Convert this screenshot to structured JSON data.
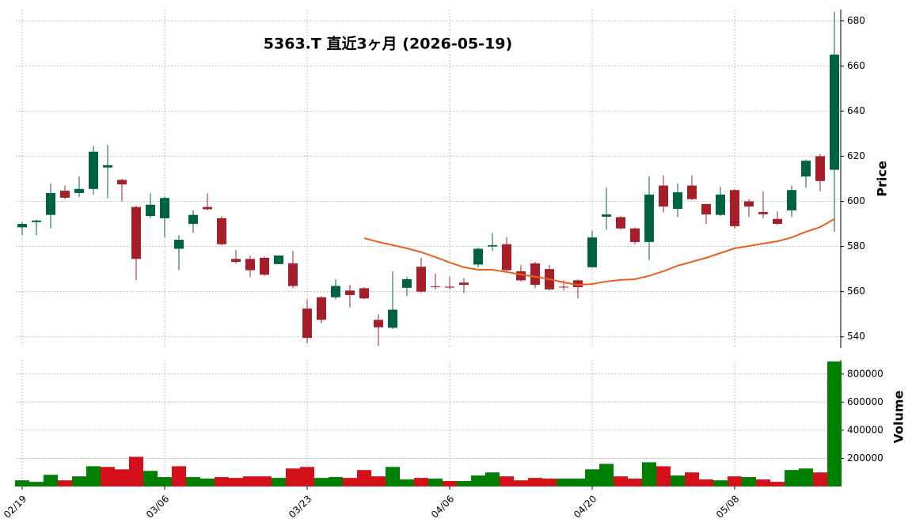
{
  "chart_data": {
    "type": "candlestick",
    "title": "5363.T  直近3ヶ月  (2026-05-19)",
    "categories": [
      "02/19",
      null,
      null,
      null,
      null,
      null,
      null,
      null,
      null,
      null,
      "03/06",
      null,
      null,
      null,
      null,
      null,
      null,
      null,
      null,
      null,
      "03/23",
      null,
      null,
      null,
      null,
      null,
      null,
      null,
      null,
      null,
      "04/06",
      null,
      null,
      null,
      null,
      null,
      null,
      null,
      null,
      null,
      "04/20",
      null,
      null,
      null,
      null,
      null,
      null,
      null,
      null,
      null,
      "05/08",
      null,
      null,
      null,
      null,
      null,
      null,
      null
    ],
    "open": [
      588.5,
      590.8,
      594,
      604.7,
      603.7,
      605.5,
      615,
      609.5,
      597.5,
      593.5,
      592.5,
      579,
      590,
      597.5,
      592.5,
      574.5,
      574.5,
      575,
      572.2,
      572.5,
      552.5,
      557.5,
      557.5,
      560.5,
      561.5,
      547.5,
      544,
      561.7,
      571,
      562.3,
      562.2,
      564,
      572,
      580,
      581,
      569,
      572.5,
      570,
      562.2,
      565,
      570.8,
      593.2,
      593,
      588,
      582,
      607,
      596.7,
      607,
      598.8,
      594,
      605,
      600,
      595.3,
      592.2,
      596,
      611,
      620,
      614
    ],
    "high": [
      591,
      591.8,
      608,
      607,
      611,
      624.5,
      625,
      610,
      598,
      603.5,
      602,
      585,
      596,
      603.5,
      593.5,
      578.5,
      576,
      575.5,
      576,
      578,
      556.5,
      558,
      565.5,
      563,
      562,
      550,
      569,
      566.5,
      575,
      568,
      566.5,
      566,
      579.5,
      586,
      584,
      571.8,
      573.2,
      571.8,
      565,
      565.5,
      587,
      606,
      593.5,
      588.5,
      611,
      611.5,
      608,
      611.5,
      599,
      606.5,
      605.5,
      601,
      604.5,
      595.5,
      607,
      618.5,
      621,
      684
    ],
    "low": [
      585,
      585,
      588,
      601,
      602,
      603,
      601.5,
      600,
      565,
      592.5,
      584,
      569.5,
      586,
      596,
      580.5,
      572.5,
      566.5,
      567,
      572,
      561.5,
      537,
      546,
      556.5,
      553,
      556.5,
      536,
      543.5,
      558,
      559.5,
      561,
      561,
      559.5,
      570.8,
      578,
      569,
      564.5,
      561.5,
      560.5,
      560.5,
      557,
      570.5,
      587.5,
      587.5,
      581,
      574,
      595,
      593,
      600.5,
      590,
      593.5,
      588,
      593,
      592.5,
      589.5,
      593,
      606,
      604.5,
      586.5
    ],
    "close": [
      590,
      591.5,
      603.7,
      601.6,
      605.5,
      622,
      616,
      607.5,
      574.5,
      598.5,
      601.5,
      583,
      594,
      596.5,
      581,
      573.2,
      569.5,
      567.5,
      576,
      562.5,
      539.5,
      547.5,
      562.5,
      558.5,
      557,
      544.2,
      552,
      565.5,
      560,
      562,
      561.8,
      563,
      579,
      580.6,
      569.5,
      565,
      563,
      561,
      562,
      562,
      584,
      594.2,
      588,
      582,
      603,
      597.7,
      604,
      601,
      594.2,
      603,
      589,
      597.7,
      594.3,
      590,
      605,
      618,
      609,
      665
    ],
    "up_color": "#006340",
    "down_color": "#a51f2a",
    "ma": {
      "color": "#e8601c",
      "values": [
        null,
        null,
        null,
        null,
        null,
        null,
        null,
        null,
        null,
        null,
        null,
        null,
        null,
        null,
        null,
        null,
        null,
        null,
        null,
        null,
        null,
        null,
        null,
        null,
        583.7,
        582,
        580.6,
        579.2,
        577.5,
        575.3,
        572.9,
        570.8,
        569.7,
        569.7,
        568.7,
        567.6,
        566.6,
        565.5,
        564.1,
        563,
        563.4,
        564.5,
        565.2,
        565.5,
        567,
        569,
        571.5,
        573.2,
        575,
        577.1,
        579.2,
        580.2,
        581.3,
        582.3,
        584,
        586.5,
        588.6,
        592.2
      ]
    },
    "ylabel": "Price",
    "ylim": [
      535,
      685
    ],
    "yticks": [
      540,
      560,
      580,
      600,
      620,
      640,
      660,
      680
    ],
    "grid": true,
    "volume": {
      "ylabel": "Volume",
      "values": [
        44000,
        33000,
        83000,
        44000,
        72000,
        144000,
        139000,
        122000,
        211000,
        111000,
        67000,
        144000,
        67000,
        56000,
        67000,
        61000,
        72000,
        72000,
        61000,
        128000,
        139000,
        61000,
        67000,
        61000,
        117000,
        72000,
        139000,
        50000,
        61000,
        56000,
        39000,
        39000,
        78000,
        100000,
        72000,
        44000,
        61000,
        56000,
        56000,
        56000,
        122000,
        161000,
        72000,
        56000,
        172000,
        144000,
        78000,
        100000,
        50000,
        44000,
        72000,
        67000,
        50000,
        33000,
        117000,
        128000,
        100000,
        889000
      ],
      "up_color": "#008000",
      "down_color": "#d4101b",
      "ylim": [
        0,
        900000
      ],
      "yticks": [
        200000,
        400000,
        600000,
        800000
      ]
    }
  }
}
